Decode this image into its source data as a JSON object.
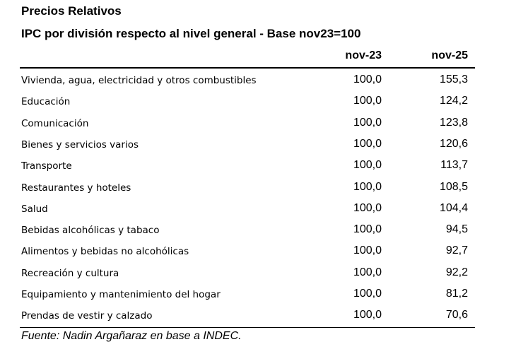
{
  "header": {
    "title": "Precios Relativos",
    "subtitle": "IPC por división respecto al nivel general - Base nov23=100"
  },
  "table": {
    "columns": [
      "nov-23",
      "nov-25"
    ],
    "rows": [
      [
        "Vivienda, agua, electricidad y otros combustibles",
        "100,0",
        "155,3"
      ],
      [
        "Educación",
        "100,0",
        "124,2"
      ],
      [
        "Comunicación",
        "100,0",
        "123,8"
      ],
      [
        "Bienes y servicios varios",
        "100,0",
        "120,6"
      ],
      [
        "Transporte",
        "100,0",
        "113,7"
      ],
      [
        "Restaurantes y hoteles",
        "100,0",
        "108,5"
      ],
      [
        "Salud",
        "100,0",
        "104,4"
      ],
      [
        "Bebidas alcohólicas y tabaco",
        "100,0",
        "94,5"
      ],
      [
        "Alimentos y bebidas no alcohólicas",
        "100,0",
        "92,7"
      ],
      [
        "Recreación y cultura",
        "100,0",
        "92,2"
      ],
      [
        "Equipamiento y mantenimiento del hogar",
        "100,0",
        "81,2"
      ],
      [
        "Prendas de vestir y calzado",
        "100,0",
        "70,6"
      ]
    ]
  },
  "footer": {
    "source": "Fuente: Nadin Argañaraz en base a INDEC."
  }
}
